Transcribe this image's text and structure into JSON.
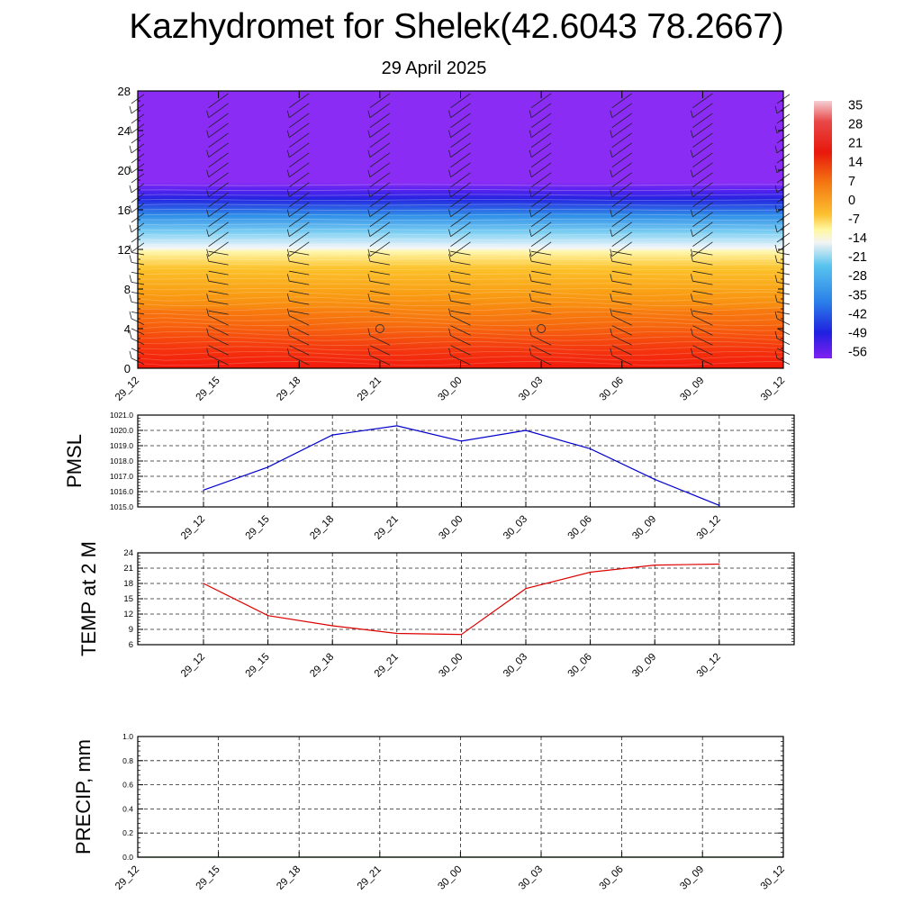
{
  "title": "Kazhydromet for Shelek(42.6043 78.2667)",
  "subtitle": "29 April 2025",
  "chart_data": [
    {
      "type": "heatmap",
      "name": "cross-section",
      "x": [
        "29_12",
        "29_15",
        "29_18",
        "29_21",
        "30_00",
        "30_03",
        "30_06",
        "30_09",
        "30_12"
      ],
      "ylim": [
        0,
        28
      ],
      "yticks": [
        0,
        4,
        8,
        12,
        16,
        20,
        24,
        28
      ],
      "colorbar_labels": [
        "35",
        "28",
        "21",
        "14",
        "7",
        "0",
        "-7",
        "-14",
        "-21",
        "-28",
        "-35",
        "-42",
        "-49",
        "-56"
      ],
      "colorbar_range": [
        -63,
        42
      ],
      "bands": [
        {
          "y0": 0,
          "y1": 3,
          "value": 30
        },
        {
          "y0": 3,
          "y1": 6,
          "value": 22
        },
        {
          "y0": 6,
          "y1": 9,
          "value": 10
        },
        {
          "y0": 9,
          "y1": 12,
          "value": 0
        },
        {
          "y0": 12,
          "y1": 14,
          "value": -22
        },
        {
          "y0": 14,
          "y1": 16,
          "value": -38
        },
        {
          "y0": 16,
          "y1": 18.5,
          "value": -56
        },
        {
          "y0": 18.5,
          "y1": 28,
          "value": -62
        }
      ],
      "calm_markers": [
        {
          "x": "29_21",
          "y": 4
        },
        {
          "x": "30_03",
          "y": 4
        }
      ]
    },
    {
      "type": "line",
      "ylabel": "PMSL",
      "categories": [
        "29_12",
        "29_15",
        "29_18",
        "29_21",
        "30_00",
        "30_03",
        "30_06",
        "30_09",
        "30_12"
      ],
      "values": [
        1016.1,
        1017.6,
        1019.7,
        1020.3,
        1019.3,
        1020.0,
        1018.8,
        1016.8,
        1015.1
      ],
      "ylim": [
        1015.0,
        1021.0
      ],
      "yticks": [
        "1015.0",
        "1016.0",
        "1017.0",
        "1018.0",
        "1019.0",
        "1020.0",
        "1021.0"
      ],
      "color": "#0000cc",
      "grid": true
    },
    {
      "type": "line",
      "ylabel": "TEMP at 2 M",
      "categories": [
        "29_12",
        "29_15",
        "29_18",
        "29_21",
        "30_00",
        "30_03",
        "30_06",
        "30_09",
        "30_12"
      ],
      "values": [
        18.0,
        11.7,
        9.7,
        8.2,
        8.0,
        17.0,
        20.2,
        21.6,
        21.8
      ],
      "ylim": [
        6,
        24
      ],
      "yticks": [
        "6",
        "9",
        "12",
        "15",
        "18",
        "21",
        "24"
      ],
      "color": "#dd0000",
      "grid": true
    },
    {
      "type": "line",
      "ylabel": "PRECIP, mm",
      "categories": [
        "29_12",
        "29_15",
        "29_18",
        "29_21",
        "30_00",
        "30_03",
        "30_06",
        "30_09",
        "30_12"
      ],
      "values": [
        0,
        0,
        0,
        0,
        0,
        0,
        0,
        0,
        0
      ],
      "ylim": [
        0,
        1.0
      ],
      "yticks": [
        "0.0",
        "0.2",
        "0.4",
        "0.6",
        "0.8",
        "1.0"
      ],
      "color": "#006600",
      "grid": true
    }
  ]
}
